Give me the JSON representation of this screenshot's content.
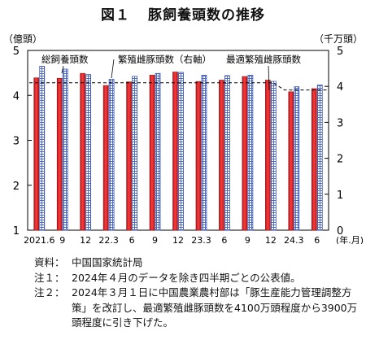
{
  "figure": {
    "number": "図１",
    "title": "豚飼養頭数の推移"
  },
  "chart_data": {
    "type": "bar",
    "left_axis_unit": "（億頭）",
    "right_axis_unit": "（千万頭）",
    "x_unit": "(年.月)",
    "ylim_left": [
      1,
      5
    ],
    "ylim_right": [
      0,
      5
    ],
    "yticks_left": [
      "1",
      "2",
      "3",
      "4",
      "5"
    ],
    "yticks_right": [
      "0",
      "1",
      "2",
      "3",
      "4",
      "5"
    ],
    "x_tick_labels": [
      "2021.6",
      "9",
      "12",
      "22.3",
      "6",
      "9",
      "12",
      "23.3",
      "6",
      "9",
      "12",
      "24.3",
      "6"
    ],
    "series": [
      {
        "name": "総飼養頭数",
        "axis": "left",
        "color": "#e8262a",
        "values": [
          4.39,
          4.38,
          4.49,
          4.22,
          4.3,
          4.45,
          4.52,
          4.31,
          4.34,
          4.42,
          4.34,
          4.08,
          4.15
        ]
      },
      {
        "name": "繁殖雌豚頭数（右軸）",
        "axis": "right",
        "color": "#5570c8",
        "values": [
          4.56,
          4.48,
          4.33,
          4.2,
          4.28,
          4.36,
          4.39,
          4.31,
          4.3,
          4.31,
          4.14,
          3.99,
          4.04
        ]
      },
      {
        "name": "最適繁殖雌豚頭数",
        "axis": "right",
        "color": "#000000",
        "values": [
          4.1,
          4.1,
          4.1,
          4.1,
          4.1,
          4.1,
          4.1,
          4.1,
          4.1,
          4.1,
          4.1,
          3.9,
          3.9
        ]
      }
    ]
  },
  "notes": [
    {
      "label": "資料：",
      "text": "中国国家統計局"
    },
    {
      "label": "注１：",
      "text": "2024年４月のデータを除き四半期ごとの公表値。"
    },
    {
      "label": "注２：",
      "text": "2024年３月１日に中国農業農村部は「豚生産能力管理調整方策」を改訂し、最適繁殖雌豚頭数を4100万頭程度から3900万頭程度に引き下げた。"
    }
  ]
}
